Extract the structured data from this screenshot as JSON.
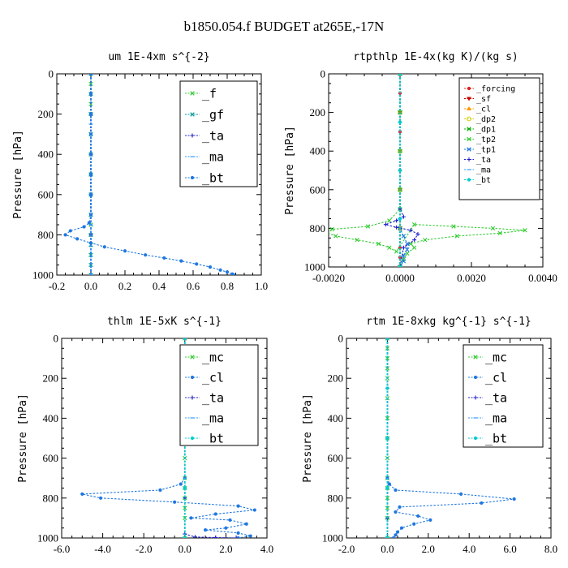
{
  "figure": {
    "title": "b1850.054.f  BUDGET at265E,-17N"
  },
  "chart_data": [
    {
      "type": "line",
      "title": "um  1E-4xm s^{-2}",
      "ylabel": "Pressure [hPa]",
      "xlabel": "",
      "xlim": [
        -0.2,
        1.0
      ],
      "ylim": [
        1000,
        0
      ],
      "xticks": [
        -0.2,
        0.0,
        0.2,
        0.4,
        0.6,
        0.8,
        1.0
      ],
      "xtick_labels": [
        "-0.2",
        "0.0",
        "0.2",
        "0.4",
        "0.6",
        "0.8",
        "1.0"
      ],
      "yticks": [
        0,
        200,
        400,
        600,
        800,
        1000
      ],
      "ytick_labels": [
        "0",
        "200",
        "400",
        "600",
        "800",
        "1000"
      ],
      "legend": "top-right",
      "series": [
        {
          "name": "_f",
          "color": "#33cc33",
          "marker": "x",
          "x": [
            0,
            0,
            0,
            0,
            0,
            0,
            0,
            0,
            0,
            0,
            0,
            0,
            0,
            0,
            0
          ],
          "y": [
            0,
            50,
            100,
            150,
            200,
            300,
            400,
            500,
            600,
            700,
            750,
            800,
            850,
            900,
            1000
          ]
        },
        {
          "name": "_gf",
          "color": "#009999",
          "marker": "x",
          "x": [
            0,
            0,
            0,
            0,
            0,
            0,
            0,
            0,
            0,
            0,
            0,
            0,
            0
          ],
          "y": [
            0,
            100,
            200,
            300,
            400,
            500,
            600,
            700,
            800,
            850,
            900,
            950,
            1000
          ]
        },
        {
          "name": "_ta",
          "color": "#2222cc",
          "marker": "+",
          "x": [
            0,
            0,
            0,
            0,
            0,
            0
          ],
          "y": [
            0,
            200,
            400,
            600,
            800,
            1000
          ]
        },
        {
          "name": "_ma",
          "color": "#3399ff",
          "marker": "-",
          "x": [
            0,
            0,
            0,
            0,
            0
          ],
          "y": [
            0,
            250,
            500,
            750,
            1000
          ]
        },
        {
          "name": "_bt",
          "color": "#1f77e0",
          "marker": "dot",
          "x": [
            0,
            0,
            0,
            0,
            0,
            0,
            0,
            0,
            -0.01,
            -0.04,
            -0.12,
            -0.15,
            -0.08,
            0.0,
            0.08,
            0.2,
            0.32,
            0.43,
            0.53,
            0.62,
            0.7,
            0.76,
            0.8,
            0.83,
            0.84
          ],
          "y": [
            0,
            100,
            200,
            300,
            400,
            500,
            600,
            700,
            740,
            760,
            780,
            800,
            820,
            840,
            860,
            880,
            900,
            915,
            930,
            945,
            960,
            975,
            985,
            995,
            1000
          ]
        }
      ]
    },
    {
      "type": "line",
      "title": "rtpthlp  1E-4x(kg K)/(kg s)",
      "ylabel": "Pressure [hPa]",
      "xlabel": "",
      "xlim": [
        -0.002,
        0.004
      ],
      "ylim": [
        1000,
        0
      ],
      "xticks": [
        -0.002,
        0.0,
        0.002,
        0.004
      ],
      "xtick_labels": [
        "-0.0020",
        "0.0000",
        "0.0020",
        "0.0040"
      ],
      "yticks": [
        0,
        200,
        400,
        600,
        800,
        1000
      ],
      "ytick_labels": [
        "0",
        "200",
        "400",
        "600",
        "800",
        "1000"
      ],
      "legend": "top-right",
      "series": [
        {
          "name": "_forcing",
          "color": "#dd2222",
          "marker": "dot",
          "x": [
            0,
            0,
            0,
            0,
            0,
            0,
            0,
            0,
            0,
            0,
            0,
            0
          ],
          "y": [
            0,
            100,
            200,
            300,
            400,
            500,
            600,
            700,
            800,
            900,
            950,
            1000
          ]
        },
        {
          "name": "_sf",
          "color": "#cc0000",
          "marker": "tri-down",
          "x": [
            0,
            0,
            0,
            0,
            0,
            0
          ],
          "y": [
            0,
            200,
            400,
            600,
            800,
            1000
          ]
        },
        {
          "name": "_cl",
          "color": "#ff9900",
          "marker": "tri",
          "x": [
            0,
            0,
            0,
            0,
            0,
            0
          ],
          "y": [
            0,
            200,
            400,
            600,
            800,
            1000
          ]
        },
        {
          "name": "_dp2",
          "color": "#cccc00",
          "marker": "circle",
          "x": [
            0,
            0,
            0,
            0,
            0,
            0
          ],
          "y": [
            0,
            200,
            400,
            600,
            800,
            1000
          ]
        },
        {
          "name": "_dp1",
          "color": "#00aa00",
          "marker": "x",
          "x": [
            0,
            0,
            0,
            0,
            0,
            0
          ],
          "y": [
            0,
            200,
            400,
            600,
            800,
            1000
          ]
        },
        {
          "name": "_tp2",
          "color": "#33cc33",
          "marker": "x",
          "x": [
            0,
            0,
            0,
            -0.0003,
            -0.0009,
            -0.0019,
            -0.0021,
            -0.0018,
            -0.0012,
            -0.0006,
            -0.0003,
            -0.0001,
            0.0004,
            0.0015,
            0.0026,
            0.0035,
            0.0028,
            0.0016,
            0.0007,
            0.0003,
            0.0004,
            0.0002,
            0.0001,
            0
          ],
          "y": [
            0,
            400,
            700,
            760,
            790,
            805,
            820,
            840,
            860,
            880,
            900,
            920,
            780,
            790,
            800,
            810,
            825,
            840,
            860,
            880,
            900,
            930,
            960,
            1000
          ]
        },
        {
          "name": "_tp1",
          "color": "#1f77e0",
          "marker": "x",
          "x": [
            0,
            0,
            0.0001,
            0.0002,
            0.0002,
            0.0001,
            0.0001,
            0
          ],
          "y": [
            0,
            800,
            840,
            880,
            910,
            940,
            970,
            1000
          ]
        },
        {
          "name": "_ta",
          "color": "#2222cc",
          "marker": "+",
          "x": [
            0,
            0,
            0.0001,
            -0.0001,
            -0.0004,
            -0.0001,
            0.0003,
            0.0005,
            0.0004,
            0.0001,
            0
          ],
          "y": [
            0,
            700,
            740,
            760,
            780,
            795,
            810,
            830,
            860,
            900,
            1000
          ]
        },
        {
          "name": "_ma",
          "color": "#3399ff",
          "marker": "-",
          "x": [
            0,
            0,
            0,
            0,
            0
          ],
          "y": [
            0,
            250,
            500,
            750,
            1000
          ]
        },
        {
          "name": "_bt",
          "color": "#00cccc",
          "marker": "dot",
          "x": [
            0,
            0,
            0,
            0,
            0
          ],
          "y": [
            0,
            250,
            500,
            750,
            1000
          ]
        }
      ]
    },
    {
      "type": "line",
      "title": "thlm  1E-5xK s^{-1}",
      "ylabel": "Pressure [hPa]",
      "xlabel": "",
      "xlim": [
        -6.0,
        4.0
      ],
      "ylim": [
        1000,
        0
      ],
      "xticks": [
        -6.0,
        -4.0,
        -2.0,
        0.0,
        2.0,
        4.0
      ],
      "xtick_labels": [
        "-6.0",
        "-4.0",
        "-2.0",
        "0.0",
        "2.0",
        "4.0"
      ],
      "yticks": [
        0,
        200,
        400,
        600,
        800,
        1000
      ],
      "ytick_labels": [
        "0",
        "200",
        "400",
        "600",
        "800",
        "1000"
      ],
      "legend": "top-right",
      "series": [
        {
          "name": "_mc",
          "color": "#33cc33",
          "marker": "x",
          "x": [
            0,
            0,
            0,
            0,
            0,
            0,
            0,
            0,
            0,
            0,
            0,
            0,
            0,
            0,
            0
          ],
          "y": [
            0,
            50,
            100,
            150,
            200,
            300,
            400,
            500,
            600,
            700,
            750,
            800,
            850,
            900,
            1000
          ]
        },
        {
          "name": "_cl",
          "color": "#1f77e0",
          "marker": "dot",
          "x": [
            0,
            0,
            -0.2,
            -1.2,
            -5.0,
            -4.1,
            -0.5,
            2.6,
            3.4,
            1.5,
            0.3,
            2.2,
            3.0,
            2.0,
            1.0,
            2.6,
            3.2,
            2.6
          ],
          "y": [
            0,
            700,
            730,
            760,
            780,
            800,
            820,
            840,
            860,
            880,
            900,
            910,
            930,
            950,
            960,
            975,
            990,
            1000
          ]
        },
        {
          "name": "_ta",
          "color": "#2222cc",
          "marker": "+",
          "x": [
            0,
            0,
            0,
            0.5,
            1.5,
            2.5
          ],
          "y": [
            0,
            800,
            980,
            995,
            998,
            1000
          ]
        },
        {
          "name": "_ma",
          "color": "#3399ff",
          "marker": "-",
          "x": [
            0,
            0,
            0,
            0,
            0
          ],
          "y": [
            0,
            250,
            500,
            750,
            1000
          ]
        },
        {
          "name": "_bt",
          "color": "#00cccc",
          "marker": "dot",
          "x": [
            0,
            0,
            0,
            0,
            0
          ],
          "y": [
            0,
            250,
            500,
            750,
            1000
          ]
        }
      ]
    },
    {
      "type": "line",
      "title": "rtm  1E-8xkg kg^{-1} s^{-1}",
      "ylabel": "Pressure [hPa]",
      "xlabel": "",
      "xlim": [
        -2.0,
        8.0
      ],
      "ylim": [
        1000,
        0
      ],
      "xticks": [
        -2.0,
        0.0,
        2.0,
        4.0,
        6.0,
        8.0
      ],
      "xtick_labels": [
        "-2.0",
        "0.0",
        "2.0",
        "4.0",
        "6.0",
        "8.0"
      ],
      "yticks": [
        0,
        200,
        400,
        600,
        800,
        1000
      ],
      "ytick_labels": [
        "0",
        "200",
        "400",
        "600",
        "800",
        "1000"
      ],
      "legend": "top-right",
      "series": [
        {
          "name": "_mc",
          "color": "#33cc33",
          "marker": "x",
          "x": [
            0,
            0,
            0,
            0,
            0,
            0,
            0,
            0,
            0,
            0,
            0,
            0,
            0,
            0,
            0
          ],
          "y": [
            0,
            50,
            100,
            150,
            200,
            300,
            400,
            500,
            600,
            700,
            750,
            800,
            850,
            900,
            1000
          ]
        },
        {
          "name": "_cl",
          "color": "#1f77e0",
          "marker": "dot",
          "x": [
            0,
            0,
            0.1,
            0.4,
            3.6,
            6.2,
            4.6,
            0.6,
            0.4,
            1.5,
            2.1,
            1.3,
            0.7,
            0.5,
            0.4,
            0.3
          ],
          "y": [
            0,
            700,
            730,
            760,
            780,
            805,
            825,
            845,
            870,
            890,
            910,
            930,
            950,
            970,
            985,
            1000
          ]
        },
        {
          "name": "_ta",
          "color": "#2222cc",
          "marker": "+",
          "x": [
            0,
            0,
            0,
            0
          ],
          "y": [
            0,
            500,
            900,
            1000
          ]
        },
        {
          "name": "_ma",
          "color": "#3399ff",
          "marker": "-",
          "x": [
            0,
            0,
            0,
            0,
            0
          ],
          "y": [
            0,
            250,
            500,
            750,
            1000
          ]
        },
        {
          "name": "_bt",
          "color": "#00cccc",
          "marker": "dot",
          "x": [
            0,
            0,
            0,
            0,
            0
          ],
          "y": [
            0,
            250,
            500,
            750,
            1000
          ]
        }
      ]
    }
  ]
}
